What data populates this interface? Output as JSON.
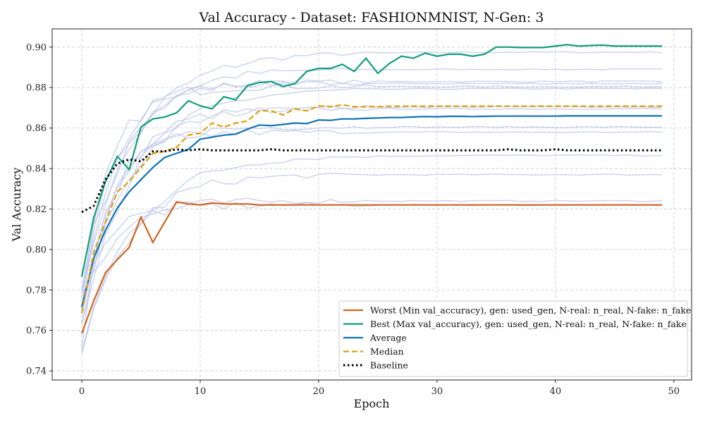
{
  "chart_data": {
    "type": "line",
    "title": "Val Accuracy - Dataset: FASHIONMNIST, N-Gen: 3",
    "xlabel": "Epoch",
    "ylabel": "Val Accuracy",
    "xlim": [
      -2.5,
      51.5
    ],
    "ylim": [
      0.7355,
      0.909
    ],
    "x_ticks": [
      0,
      10,
      20,
      30,
      40,
      50
    ],
    "y_ticks": [
      0.74,
      0.76,
      0.78,
      0.8,
      0.82,
      0.84,
      0.86,
      0.88,
      0.9
    ],
    "grid": true,
    "grid_style": "dashed",
    "legend_position": "lower-right",
    "background_runs": {
      "color": "#b7c2ea",
      "endpoints": [
        0.8975,
        0.889,
        0.883,
        0.882,
        0.8805,
        0.8795,
        0.8705,
        0.8695,
        0.8605,
        0.858,
        0.8465,
        0.837,
        0.824,
        0.822
      ],
      "starts": [
        0.786,
        0.781,
        0.776,
        0.773,
        0.771,
        0.769,
        0.768,
        0.766,
        0.761,
        0.755,
        0.752,
        0.744,
        0.779,
        0.787
      ]
    },
    "series": [
      {
        "name": "Worst (Min val_accuracy), gen: used_gen, N-real: n_real, N-fake: n_fake",
        "color": "#d1651b",
        "dash": "solid",
        "values": [
          0.7585,
          0.7745,
          0.7885,
          0.795,
          0.801,
          0.816,
          0.8035,
          0.8135,
          0.8235,
          0.8225,
          0.822,
          0.823,
          0.8225,
          0.8225,
          0.8225,
          0.822,
          0.822,
          0.822,
          0.822,
          0.822,
          0.822,
          0.822,
          0.822,
          0.822,
          0.822,
          0.822,
          0.822,
          0.822,
          0.822,
          0.822,
          0.822,
          0.822,
          0.822,
          0.822,
          0.822,
          0.822,
          0.822,
          0.822,
          0.822,
          0.822,
          0.822,
          0.822,
          0.822,
          0.822,
          0.822,
          0.822,
          0.822,
          0.822,
          0.822,
          0.822
        ]
      },
      {
        "name": "Best (Max val_accuracy), gen: used_gen, N-real: n_real, N-fake: n_fake",
        "color": "#119e7a",
        "dash": "solid",
        "values": [
          0.7865,
          0.8155,
          0.8335,
          0.846,
          0.8395,
          0.8605,
          0.8645,
          0.8655,
          0.8675,
          0.8735,
          0.871,
          0.8695,
          0.8755,
          0.874,
          0.881,
          0.8825,
          0.883,
          0.8805,
          0.882,
          0.888,
          0.8895,
          0.8895,
          0.8915,
          0.888,
          0.8945,
          0.887,
          0.892,
          0.8955,
          0.8945,
          0.897,
          0.8955,
          0.8965,
          0.8965,
          0.8955,
          0.8965,
          0.9,
          0.9,
          0.8998,
          0.8998,
          0.8998,
          0.9005,
          0.9012,
          0.9005,
          0.9008,
          0.901,
          0.9005,
          0.9005,
          0.9005,
          0.9005,
          0.9005
        ]
      },
      {
        "name": "Average",
        "color": "#0f72b3",
        "dash": "solid",
        "values": [
          0.7715,
          0.7955,
          0.8095,
          0.8205,
          0.8285,
          0.8345,
          0.8405,
          0.8455,
          0.8475,
          0.8495,
          0.8545,
          0.8555,
          0.8565,
          0.857,
          0.8595,
          0.8615,
          0.8612,
          0.8618,
          0.8625,
          0.8622,
          0.864,
          0.8638,
          0.8645,
          0.8645,
          0.8648,
          0.865,
          0.8652,
          0.8652,
          0.8655,
          0.8657,
          0.8656,
          0.8658,
          0.8658,
          0.8657,
          0.8658,
          0.8659,
          0.8659,
          0.8659,
          0.8659,
          0.8659,
          0.8659,
          0.866,
          0.866,
          0.866,
          0.866,
          0.866,
          0.866,
          0.866,
          0.866,
          0.866
        ]
      },
      {
        "name": "Median",
        "color": "#e09f0a",
        "dash": "dashed",
        "values": [
          0.7685,
          0.7985,
          0.8135,
          0.8285,
          0.8335,
          0.8405,
          0.8475,
          0.8485,
          0.8505,
          0.8565,
          0.8575,
          0.8625,
          0.8605,
          0.8625,
          0.8635,
          0.8685,
          0.8685,
          0.8665,
          0.8695,
          0.8685,
          0.871,
          0.8705,
          0.8715,
          0.8705,
          0.8705,
          0.8705,
          0.8708,
          0.8708,
          0.8708,
          0.8708,
          0.8708,
          0.8708,
          0.8708,
          0.8708,
          0.8708,
          0.8708,
          0.8708,
          0.8708,
          0.8708,
          0.8708,
          0.8708,
          0.8708,
          0.8708,
          0.8708,
          0.8708,
          0.8708,
          0.8708,
          0.8708,
          0.8708,
          0.8708
        ]
      },
      {
        "name": "Baseline",
        "color": "#000000",
        "dash": "dotted",
        "values": [
          0.8185,
          0.8215,
          0.8345,
          0.8425,
          0.8445,
          0.8435,
          0.8485,
          0.8485,
          0.8495,
          0.849,
          0.8495,
          0.849,
          0.849,
          0.849,
          0.849,
          0.849,
          0.8495,
          0.849,
          0.849,
          0.849,
          0.849,
          0.849,
          0.849,
          0.849,
          0.849,
          0.849,
          0.849,
          0.849,
          0.849,
          0.849,
          0.849,
          0.849,
          0.849,
          0.849,
          0.849,
          0.849,
          0.8495,
          0.849,
          0.849,
          0.849,
          0.8495,
          0.849,
          0.849,
          0.849,
          0.849,
          0.849,
          0.849,
          0.849,
          0.849,
          0.849
        ]
      }
    ]
  }
}
